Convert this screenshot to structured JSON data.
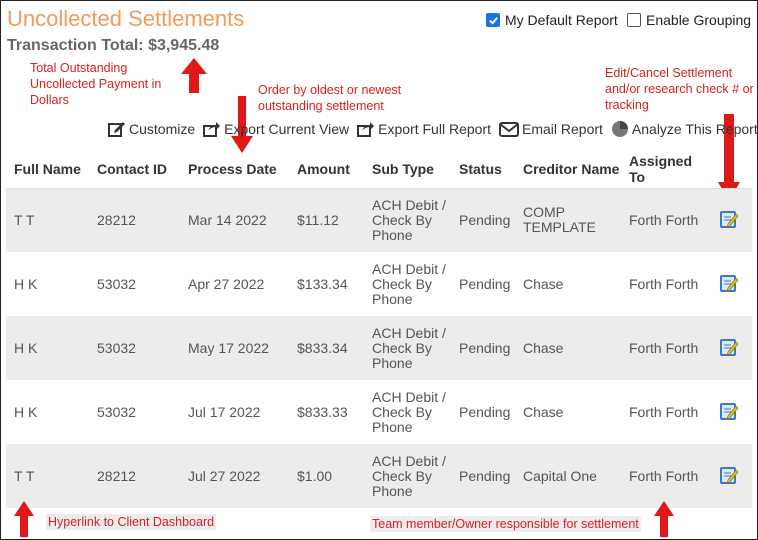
{
  "header": {
    "title": "Uncollected Settlements",
    "total_label": "Transaction Total:",
    "total_value": "$3,945.48",
    "my_default_report": "My Default Report",
    "enable_grouping": "Enable Grouping"
  },
  "toolbar": {
    "customize": "Customize",
    "export_current": "Export Current View",
    "export_full": "Export Full Report",
    "email": "Email Report",
    "analyze": "Analyze This Report"
  },
  "annotations": {
    "total_note": "Total Outstanding Uncollected Payment in Dollars",
    "order_note": "Order by oldest or newest outstanding settlement",
    "edit_note": "Edit/Cancel Settlement and/or research check # or tracking",
    "hyperlink_note": "Hyperlink to Client Dashboard",
    "team_note": "Team member/Owner responsible for settlement"
  },
  "table": {
    "headers": [
      "Full Name",
      "Contact ID",
      "Process Date",
      "Amount",
      "Sub Type",
      "Status",
      "Creditor Name",
      "Assigned To"
    ],
    "rows": [
      {
        "name": "T T",
        "contact": "28212",
        "date": "Mar 14 2022",
        "amount": "$11.12",
        "subtype": "ACH Debit / Check By Phone",
        "status": "Pending",
        "creditor": "COMP TEMPLATE",
        "assigned": "Forth Forth"
      },
      {
        "name": "H K",
        "contact": "53032",
        "date": "Apr 27 2022",
        "amount": "$133.34",
        "subtype": "ACH Debit / Check By Phone",
        "status": "Pending",
        "creditor": "Chase",
        "assigned": "Forth Forth"
      },
      {
        "name": "H K",
        "contact": "53032",
        "date": "May 17 2022",
        "amount": "$833.34",
        "subtype": "ACH Debit / Check By Phone",
        "status": "Pending",
        "creditor": "Chase",
        "assigned": "Forth Forth"
      },
      {
        "name": "H K",
        "contact": "53032",
        "date": "Jul 17 2022",
        "amount": "$833.33",
        "subtype": "ACH Debit / Check By Phone",
        "status": "Pending",
        "creditor": "Chase",
        "assigned": "Forth Forth"
      },
      {
        "name": "T T",
        "contact": "28212",
        "date": "Jul 27 2022",
        "amount": "$1.00",
        "subtype": "ACH Debit / Check By Phone",
        "status": "Pending",
        "creditor": "Capital One",
        "assigned": "Forth Forth"
      }
    ]
  },
  "colors": {
    "title": "#f29a57",
    "annotation": "#d92020",
    "row_alt": "#ececec"
  }
}
